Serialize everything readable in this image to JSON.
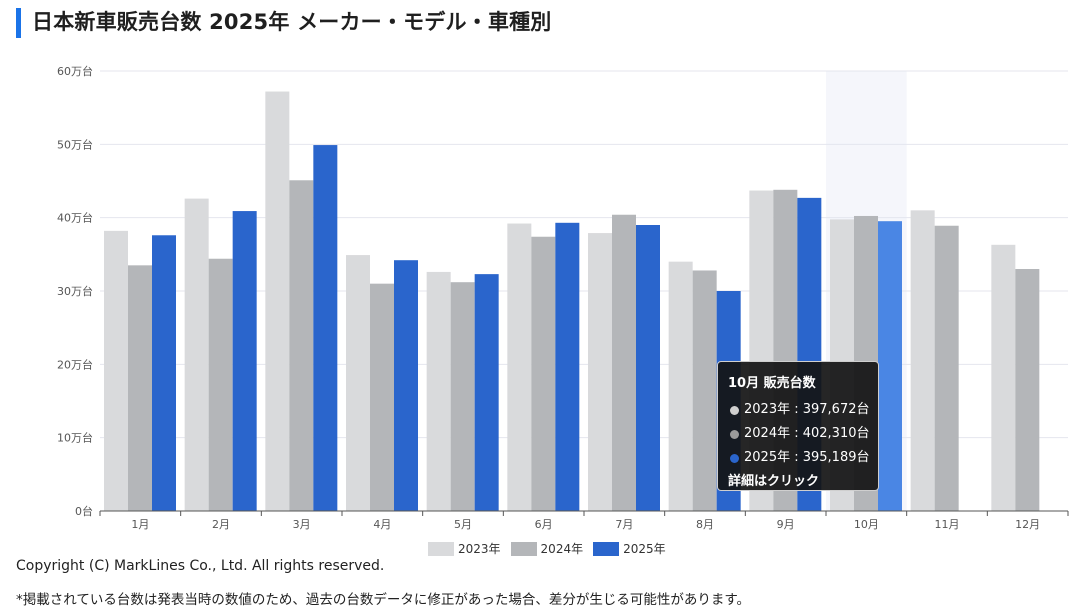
{
  "page": {
    "title": "日本新車販売台数 2025年 メーカー・モデル・車種別",
    "copyright": "Copyright (C) MarkLines Co., Ltd. All rights reserved.",
    "note": "*掲載されている台数は発表当時の数値のため、過去の台数データに修正があった場合、差分が生じる可能性があります。"
  },
  "chart_data": {
    "type": "bar",
    "title": "日本新車販売台数 2025年",
    "categories": [
      "1月",
      "2月",
      "3月",
      "4月",
      "5月",
      "6月",
      "7月",
      "8月",
      "9月",
      "10月",
      "11月",
      "12月"
    ],
    "series": [
      {
        "name": "2023年",
        "color": "#d9dadc",
        "values": [
          382000,
          426000,
          572000,
          349000,
          326000,
          392000,
          379000,
          340000,
          437000,
          397672,
          410000,
          363000
        ]
      },
      {
        "name": "2024年",
        "color": "#b4b6b9",
        "values": [
          335000,
          344000,
          451000,
          310000,
          312000,
          374000,
          404000,
          328000,
          438000,
          402310,
          389000,
          330000
        ]
      },
      {
        "name": "2025年",
        "color": "#2a65cc",
        "values": [
          376000,
          409000,
          499000,
          342000,
          323000,
          393000,
          390000,
          300000,
          427000,
          395189,
          null,
          null
        ]
      }
    ],
    "ylim": [
      0,
      600000
    ],
    "yticks": [
      0,
      100000,
      200000,
      300000,
      400000,
      500000,
      600000
    ],
    "ytick_labels": [
      "0台",
      "10万台",
      "20万台",
      "30万台",
      "40万台",
      "50万台",
      "60万台"
    ],
    "highlight_category": "10月",
    "highlight_series_color": "#4a86e4",
    "highlight_band_color": "#f5f6fb",
    "grid": true,
    "legend_position": "bottom-center"
  },
  "tooltip": {
    "title": "10月 販売台数",
    "rows": [
      {
        "label": "2023年 : 397,672台",
        "color": "#cfcfcf"
      },
      {
        "label": "2024年 : 402,310台",
        "color": "#9a9a9a"
      },
      {
        "label": "2025年 : 395,189台",
        "color": "#2a65cc"
      }
    ],
    "link": "詳細はクリック"
  }
}
